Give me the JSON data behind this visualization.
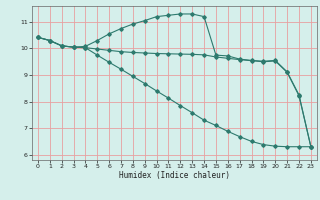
{
  "bg_color": "#d5efeb",
  "grid_color": "#e8a0a0",
  "line_color": "#2d7a6e",
  "xlabel": "Humidex (Indice chaleur)",
  "xlim": [
    -0.5,
    23.5
  ],
  "ylim": [
    5.8,
    11.6
  ],
  "yticks": [
    6,
    7,
    8,
    9,
    10,
    11
  ],
  "xticks": [
    0,
    1,
    2,
    3,
    4,
    5,
    6,
    7,
    8,
    9,
    10,
    11,
    12,
    13,
    14,
    15,
    16,
    17,
    18,
    19,
    20,
    21,
    22,
    23
  ],
  "line1_x": [
    0,
    1,
    2,
    3,
    4,
    5,
    6,
    7,
    8,
    9,
    10,
    11,
    12,
    13,
    14,
    15,
    16,
    17,
    18,
    19,
    20,
    21,
    22,
    23
  ],
  "line1_y": [
    10.42,
    10.3,
    10.1,
    10.05,
    10.08,
    10.3,
    10.55,
    10.75,
    10.92,
    11.05,
    11.2,
    11.25,
    11.3,
    11.3,
    11.2,
    9.75,
    9.72,
    9.6,
    9.55,
    9.52,
    9.55,
    9.12,
    8.25,
    6.3
  ],
  "line2_x": [
    0,
    1,
    2,
    3,
    4,
    5,
    6,
    7,
    8,
    9,
    10,
    11,
    12,
    13,
    14,
    15,
    16,
    17,
    18,
    19,
    20,
    21,
    22,
    23
  ],
  "line2_y": [
    10.42,
    10.3,
    10.1,
    10.05,
    10.03,
    9.98,
    9.93,
    9.88,
    9.85,
    9.83,
    9.81,
    9.8,
    9.79,
    9.78,
    9.76,
    9.68,
    9.63,
    9.58,
    9.54,
    9.5,
    9.53,
    9.1,
    8.22,
    6.3
  ],
  "line3_x": [
    0,
    1,
    2,
    3,
    4,
    5,
    6,
    7,
    8,
    9,
    10,
    11,
    12,
    13,
    14,
    15,
    16,
    17,
    18,
    19,
    20,
    21,
    22,
    23
  ],
  "line3_y": [
    10.42,
    10.3,
    10.1,
    10.05,
    10.03,
    9.75,
    9.48,
    9.22,
    8.95,
    8.68,
    8.4,
    8.13,
    7.85,
    7.58,
    7.3,
    7.1,
    6.88,
    6.68,
    6.5,
    6.38,
    6.32,
    6.3,
    6.3,
    6.3
  ]
}
